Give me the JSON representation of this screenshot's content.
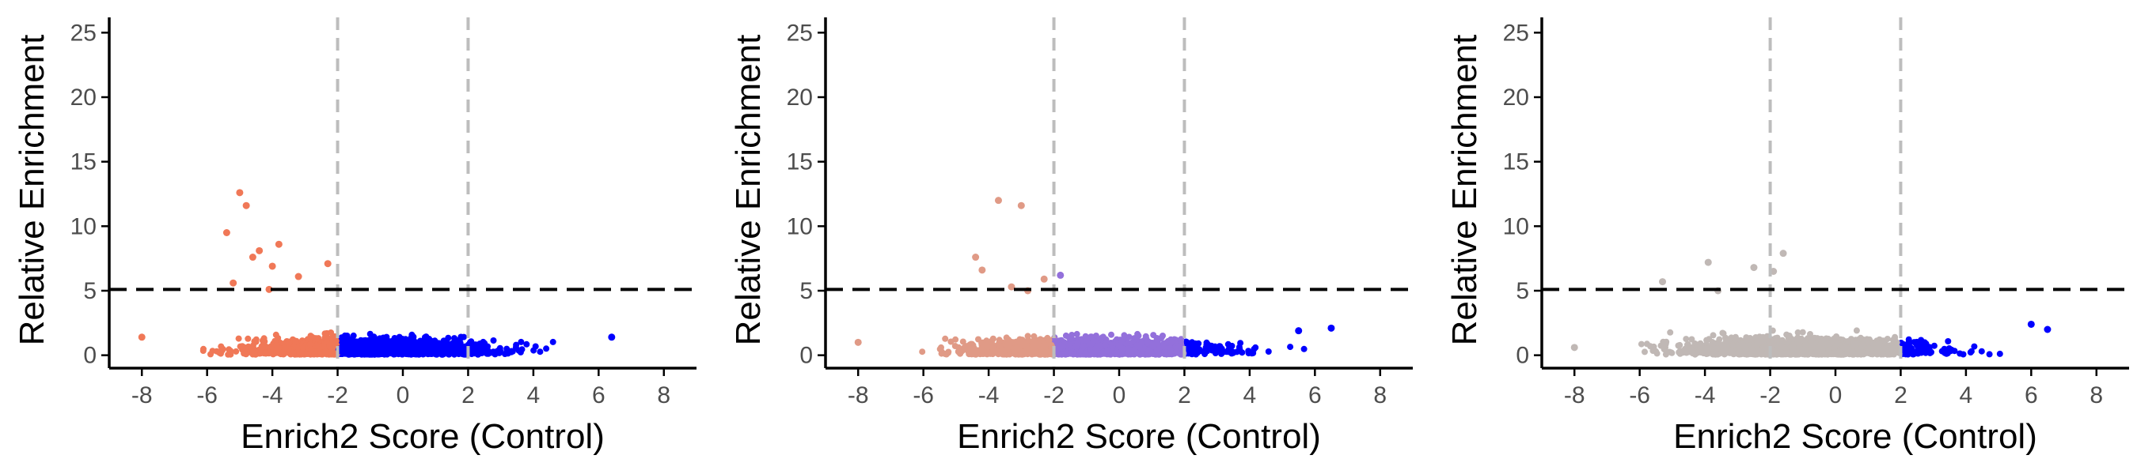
{
  "chart_data": [
    {
      "type": "scatter",
      "xlabel": "Enrich2 Score (Control)",
      "ylabel": "Relative Enrichment",
      "xlim": [
        -9,
        9
      ],
      "ylim": [
        -1,
        26
      ],
      "xticks": [
        -8,
        -6,
        -4,
        -2,
        0,
        2,
        4,
        6,
        8
      ],
      "yticks": [
        0,
        5,
        10,
        15,
        20,
        25
      ],
      "x_tick_labels": [
        "-8",
        "-6",
        "-4",
        "-2",
        "0",
        "2",
        "4",
        "6",
        "8"
      ],
      "y_tick_labels": [
        "0",
        "5",
        "10",
        "15",
        "20",
        "25"
      ],
      "reference_lines": {
        "vertical_dashed_gray": [
          -2,
          2
        ],
        "horizontal_dashed_black": 5.1
      },
      "grid": false,
      "legend": "none",
      "groups": [
        {
          "range": [
            -8,
            -2
          ],
          "color": "#F07857"
        },
        {
          "range": [
            -2,
            6.6
          ],
          "color": "#0000FF"
        }
      ],
      "outliers": [
        {
          "x": -8.0,
          "y": 1.4
        },
        {
          "x": -5.0,
          "y": 12.6
        },
        {
          "x": -4.8,
          "y": 11.6
        },
        {
          "x": -5.4,
          "y": 9.5
        },
        {
          "x": -3.8,
          "y": 8.6
        },
        {
          "x": -4.4,
          "y": 8.1
        },
        {
          "x": -4.6,
          "y": 7.6
        },
        {
          "x": -2.3,
          "y": 7.1
        },
        {
          "x": -4.0,
          "y": 6.9
        },
        {
          "x": -3.2,
          "y": 6.1
        },
        {
          "x": -5.2,
          "y": 5.6
        },
        {
          "x": -4.1,
          "y": 5.1
        },
        {
          "x": 6.4,
          "y": 1.4
        }
      ]
    },
    {
      "type": "scatter",
      "xlabel": "Enrich2 Score (Control)",
      "ylabel": "Relative Enrichment",
      "xlim": [
        -9,
        9
      ],
      "ylim": [
        -1,
        26
      ],
      "xticks": [
        -8,
        -6,
        -4,
        -2,
        0,
        2,
        4,
        6,
        8
      ],
      "yticks": [
        0,
        5,
        10,
        15,
        20,
        25
      ],
      "x_tick_labels": [
        "-8",
        "-6",
        "-4",
        "-2",
        "0",
        "2",
        "4",
        "6",
        "8"
      ],
      "y_tick_labels": [
        "0",
        "5",
        "10",
        "15",
        "20",
        "25"
      ],
      "reference_lines": {
        "vertical_dashed_gray": [
          -2,
          2
        ],
        "horizontal_dashed_black": 5.1
      },
      "grid": false,
      "legend": "none",
      "groups": [
        {
          "range": [
            -8,
            -2
          ],
          "color": "#E09A86"
        },
        {
          "range": [
            -2,
            2
          ],
          "color": "#9370DB"
        },
        {
          "range": [
            2,
            6.6
          ],
          "color": "#0000FF"
        }
      ],
      "outliers": [
        {
          "x": -8.0,
          "y": 1.0
        },
        {
          "x": -3.7,
          "y": 12.0
        },
        {
          "x": -3.0,
          "y": 11.6
        },
        {
          "x": -4.4,
          "y": 7.6
        },
        {
          "x": -4.2,
          "y": 6.6
        },
        {
          "x": -2.3,
          "y": 5.9
        },
        {
          "x": -1.8,
          "y": 6.2
        },
        {
          "x": -3.3,
          "y": 5.3
        },
        {
          "x": -2.8,
          "y": 5.0
        },
        {
          "x": 6.5,
          "y": 2.1
        },
        {
          "x": 5.5,
          "y": 1.9
        }
      ]
    },
    {
      "type": "scatter",
      "xlabel": "Enrich2 Score (Control)",
      "ylabel": "Relative Enrichment",
      "xlim": [
        -9,
        9
      ],
      "ylim": [
        -1,
        26
      ],
      "xticks": [
        -8,
        -6,
        -4,
        -2,
        0,
        2,
        4,
        6,
        8
      ],
      "yticks": [
        0,
        5,
        10,
        15,
        20,
        25
      ],
      "x_tick_labels": [
        "-8",
        "-6",
        "-4",
        "-2",
        "0",
        "2",
        "4",
        "6",
        "8"
      ],
      "y_tick_labels": [
        "0",
        "5",
        "10",
        "15",
        "20",
        "25"
      ],
      "reference_lines": {
        "vertical_dashed_gray": [
          -2,
          2
        ],
        "horizontal_dashed_black": 5.1
      },
      "grid": false,
      "legend": "none",
      "groups": [
        {
          "range": [
            -8,
            2
          ],
          "color": "#C0B8B5"
        },
        {
          "range": [
            2,
            6.6
          ],
          "color": "#0000FF"
        }
      ],
      "outliers": [
        {
          "x": -8.0,
          "y": 0.6
        },
        {
          "x": -1.6,
          "y": 7.9
        },
        {
          "x": -1.9,
          "y": 6.5
        },
        {
          "x": -2.5,
          "y": 6.8
        },
        {
          "x": -3.9,
          "y": 7.2
        },
        {
          "x": -5.3,
          "y": 5.7
        },
        {
          "x": -3.6,
          "y": 5.0
        },
        {
          "x": 6.5,
          "y": 2.0
        },
        {
          "x": 6.0,
          "y": 2.4
        }
      ]
    }
  ]
}
